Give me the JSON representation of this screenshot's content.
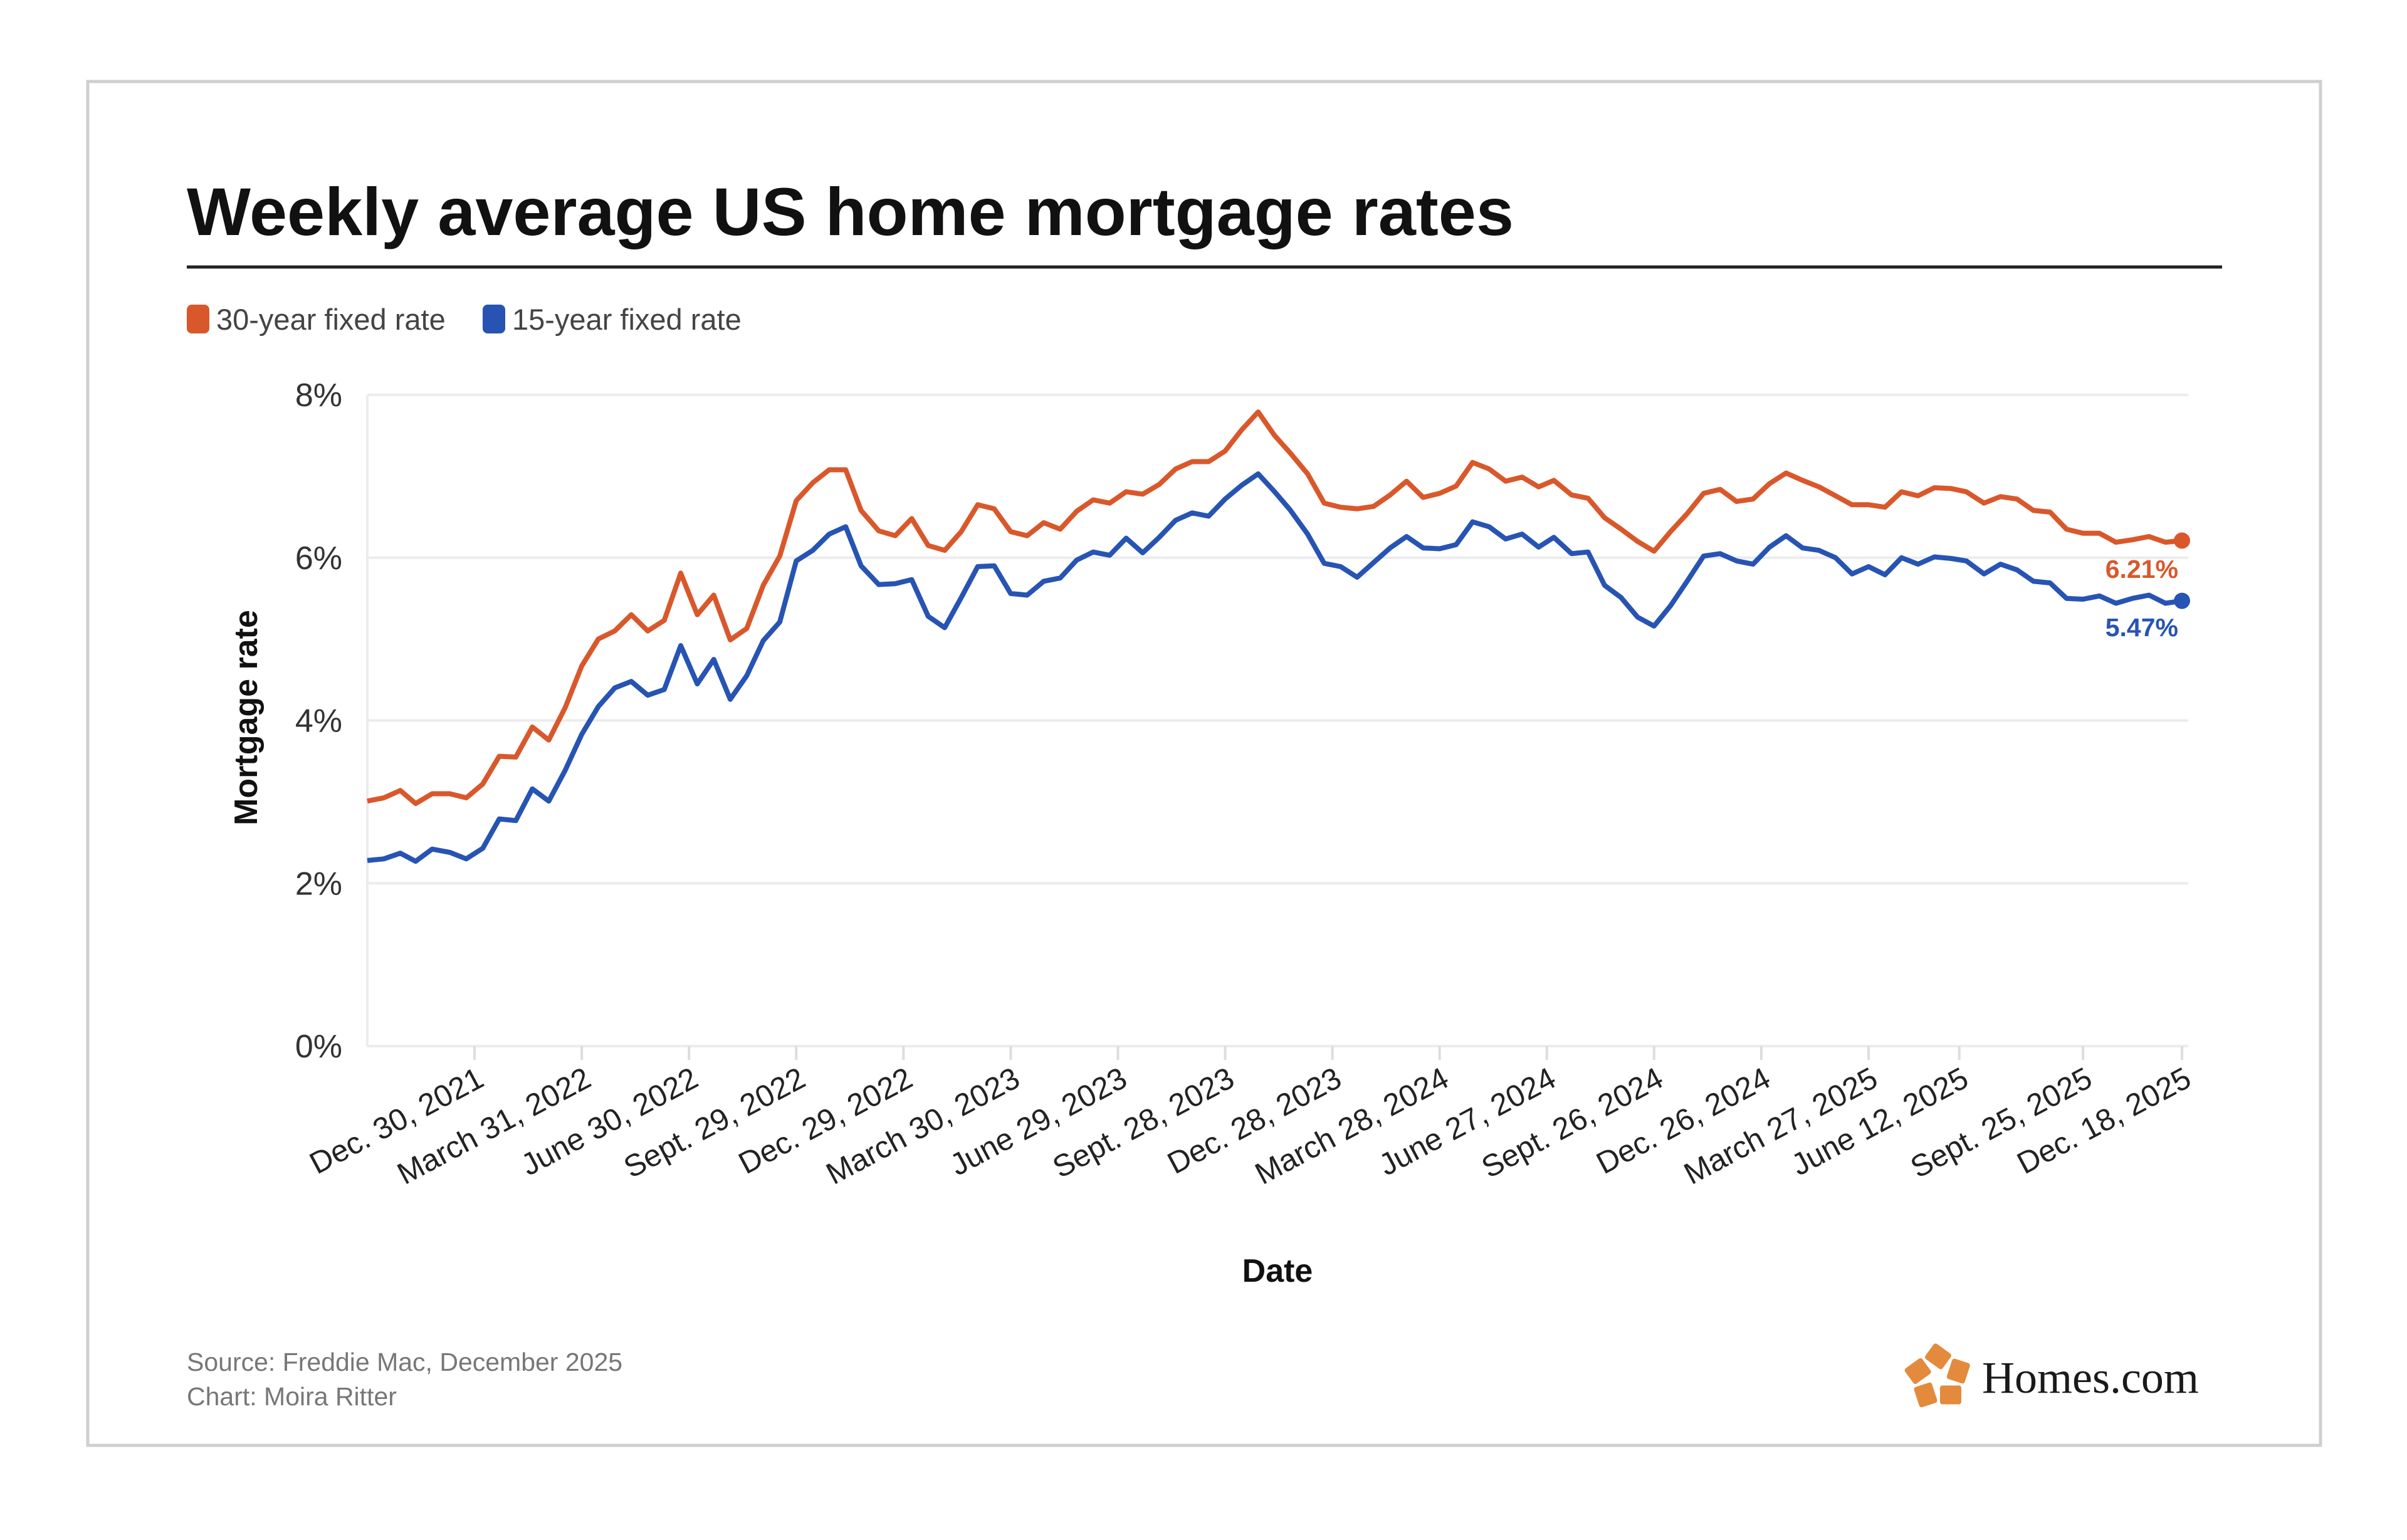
{
  "colors": {
    "series_30": "#d9582b",
    "series_15": "#2754b3",
    "logo": "#e48a3c"
  },
  "chart_data": {
    "type": "line",
    "title": "Weekly average US home mortgage rates",
    "xlabel": "Date",
    "ylabel": "Mortgage rate",
    "ylim": [
      0,
      8
    ],
    "yticks": [
      "0%",
      "2%",
      "4%",
      "6%",
      "8%"
    ],
    "ytick_values": [
      0,
      2,
      4,
      6,
      8
    ],
    "xlim": [
      "2021-09-30",
      "2025-12-18"
    ],
    "xticks": [
      {
        "date": "2021-12-30",
        "label": "Dec. 30, 2021"
      },
      {
        "date": "2022-03-31",
        "label": "March 31, 2022"
      },
      {
        "date": "2022-06-30",
        "label": "June 30, 2022"
      },
      {
        "date": "2022-09-29",
        "label": "Sept. 29, 2022"
      },
      {
        "date": "2022-12-29",
        "label": "Dec. 29, 2022"
      },
      {
        "date": "2023-03-30",
        "label": "March 30, 2023"
      },
      {
        "date": "2023-06-29",
        "label": "June 29, 2023"
      },
      {
        "date": "2023-09-28",
        "label": "Sept. 28, 2023"
      },
      {
        "date": "2023-12-28",
        "label": "Dec. 28, 2023"
      },
      {
        "date": "2024-03-28",
        "label": "March 28, 2024"
      },
      {
        "date": "2024-06-27",
        "label": "June 27, 2024"
      },
      {
        "date": "2024-09-26",
        "label": "Sept. 26, 2024"
      },
      {
        "date": "2024-12-26",
        "label": "Dec. 26, 2024"
      },
      {
        "date": "2025-03-27",
        "label": "March 27, 2025"
      },
      {
        "date": "2025-06-12",
        "label": "June 12, 2025"
      },
      {
        "date": "2025-09-25",
        "label": "Sept. 25, 2025"
      },
      {
        "date": "2025-12-18",
        "label": "Dec. 18, 2025"
      }
    ],
    "grid": "horizontal",
    "legend_position": "top-left",
    "x": [
      "2021-09-30",
      "2021-10-14",
      "2021-10-28",
      "2021-11-10",
      "2021-11-24",
      "2021-12-09",
      "2021-12-23",
      "2022-01-06",
      "2022-01-20",
      "2022-02-03",
      "2022-02-17",
      "2022-03-03",
      "2022-03-17",
      "2022-03-31",
      "2022-04-14",
      "2022-04-28",
      "2022-05-12",
      "2022-05-26",
      "2022-06-09",
      "2022-06-23",
      "2022-07-07",
      "2022-07-21",
      "2022-08-04",
      "2022-08-18",
      "2022-09-01",
      "2022-09-15",
      "2022-09-29",
      "2022-10-13",
      "2022-10-27",
      "2022-11-10",
      "2022-11-23",
      "2022-12-08",
      "2022-12-22",
      "2023-01-05",
      "2023-01-19",
      "2023-02-02",
      "2023-02-16",
      "2023-03-02",
      "2023-03-16",
      "2023-03-30",
      "2023-04-13",
      "2023-04-27",
      "2023-05-11",
      "2023-05-25",
      "2023-06-08",
      "2023-06-22",
      "2023-07-06",
      "2023-07-20",
      "2023-08-03",
      "2023-08-17",
      "2023-08-31",
      "2023-09-14",
      "2023-09-28",
      "2023-10-12",
      "2023-10-26",
      "2023-11-09",
      "2023-11-22",
      "2023-12-07",
      "2023-12-21",
      "2024-01-04",
      "2024-01-18",
      "2024-02-01",
      "2024-02-15",
      "2024-02-29",
      "2024-03-14",
      "2024-03-28",
      "2024-04-11",
      "2024-04-25",
      "2024-05-09",
      "2024-05-23",
      "2024-06-06",
      "2024-06-20",
      "2024-07-03",
      "2024-07-18",
      "2024-08-01",
      "2024-08-15",
      "2024-08-29",
      "2024-09-12",
      "2024-09-26",
      "2024-10-10",
      "2024-10-24",
      "2024-11-07",
      "2024-11-21",
      "2024-12-05",
      "2024-12-19",
      "2025-01-02",
      "2025-01-16",
      "2025-01-30",
      "2025-02-13",
      "2025-02-27",
      "2025-03-13",
      "2025-03-27",
      "2025-04-10",
      "2025-04-24",
      "2025-05-08",
      "2025-05-22",
      "2025-06-05",
      "2025-06-18",
      "2025-07-03",
      "2025-07-17",
      "2025-07-31",
      "2025-08-14",
      "2025-08-28",
      "2025-09-11",
      "2025-09-25",
      "2025-10-09",
      "2025-10-23",
      "2025-11-06",
      "2025-11-20",
      "2025-12-04",
      "2025-12-18"
    ],
    "series": [
      {
        "name": "30-year fixed rate",
        "end_label": "6.21%",
        "values": [
          3.01,
          3.05,
          3.14,
          2.98,
          3.1,
          3.1,
          3.05,
          3.22,
          3.56,
          3.55,
          3.92,
          3.76,
          4.16,
          4.67,
          5.0,
          5.1,
          5.3,
          5.1,
          5.23,
          5.81,
          5.3,
          5.54,
          4.99,
          5.13,
          5.66,
          6.02,
          6.7,
          6.92,
          7.08,
          7.08,
          6.58,
          6.33,
          6.27,
          6.48,
          6.15,
          6.09,
          6.32,
          6.65,
          6.6,
          6.32,
          6.27,
          6.43,
          6.35,
          6.57,
          6.71,
          6.67,
          6.81,
          6.78,
          6.9,
          7.09,
          7.18,
          7.18,
          7.31,
          7.57,
          7.79,
          7.5,
          7.29,
          7.03,
          6.67,
          6.62,
          6.6,
          6.63,
          6.77,
          6.94,
          6.74,
          6.79,
          6.88,
          7.17,
          7.09,
          6.94,
          6.99,
          6.87,
          6.95,
          6.77,
          6.73,
          6.49,
          6.35,
          6.2,
          6.08,
          6.32,
          6.54,
          6.79,
          6.84,
          6.69,
          6.72,
          6.91,
          7.04,
          6.95,
          6.87,
          6.76,
          6.65,
          6.65,
          6.62,
          6.81,
          6.76,
          6.86,
          6.85,
          6.81,
          6.67,
          6.75,
          6.72,
          6.58,
          6.56,
          6.35,
          6.3,
          6.3,
          6.19,
          6.22,
          6.26,
          6.19,
          6.21
        ]
      },
      {
        "name": "15-year fixed rate",
        "end_label": "5.47%",
        "values": [
          2.28,
          2.3,
          2.37,
          2.27,
          2.42,
          2.38,
          2.3,
          2.43,
          2.79,
          2.77,
          3.16,
          3.01,
          3.39,
          3.83,
          4.17,
          4.4,
          4.48,
          4.31,
          4.38,
          4.92,
          4.45,
          4.75,
          4.26,
          4.55,
          4.98,
          5.21,
          5.96,
          6.09,
          6.29,
          6.38,
          5.9,
          5.67,
          5.68,
          5.73,
          5.28,
          5.14,
          5.51,
          5.89,
          5.9,
          5.56,
          5.54,
          5.71,
          5.75,
          5.97,
          6.07,
          6.03,
          6.24,
          6.06,
          6.25,
          6.46,
          6.55,
          6.51,
          6.72,
          6.89,
          7.03,
          6.81,
          6.59,
          6.29,
          5.93,
          5.89,
          5.76,
          5.94,
          6.12,
          6.26,
          6.12,
          6.11,
          6.16,
          6.44,
          6.38,
          6.23,
          6.29,
          6.13,
          6.25,
          6.05,
          6.07,
          5.66,
          5.51,
          5.27,
          5.16,
          5.41,
          5.71,
          6.02,
          6.05,
          5.96,
          5.92,
          6.13,
          6.27,
          6.12,
          6.09,
          6.0,
          5.8,
          5.89,
          5.79,
          6.0,
          5.92,
          6.01,
          5.99,
          5.96,
          5.8,
          5.92,
          5.85,
          5.71,
          5.69,
          5.5,
          5.49,
          5.53,
          5.44,
          5.5,
          5.54,
          5.44,
          5.47
        ]
      }
    ]
  },
  "footer": {
    "source": "Source: Freddie Mac, December 2025",
    "credit": "Chart: Moira Ritter",
    "logo_text": "Homes.com"
  }
}
